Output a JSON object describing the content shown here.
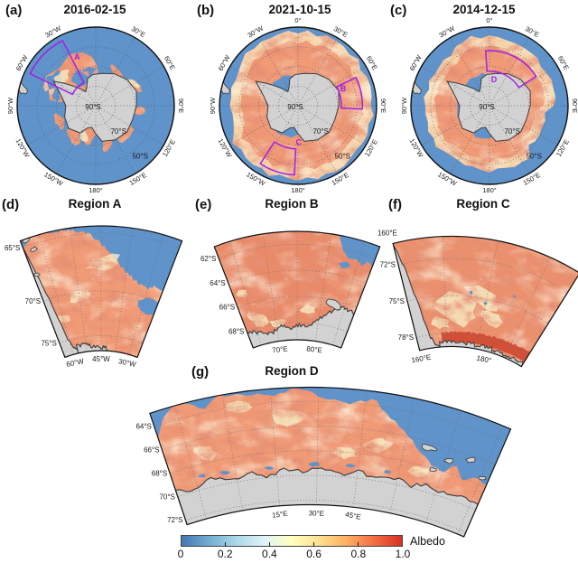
{
  "panels": {
    "a": {
      "tag": "(a)",
      "title": "2016-02-15",
      "ring_labels": [
        "30°E",
        "60°E",
        "90°E",
        "120°E",
        "150°E",
        "180°",
        "150°W",
        "120°W",
        "90°W",
        "60°W",
        "30°W"
      ],
      "interior_labels": [
        "90°S",
        "70°S",
        "50°S"
      ],
      "box_labels": [
        "A"
      ]
    },
    "b": {
      "tag": "(b)",
      "title": "2021-10-15",
      "ring_labels": [
        "0°",
        "30°E",
        "60°E",
        "90°E",
        "120°E",
        "150°E",
        "180°",
        "150°W",
        "120°W",
        "90°W",
        "60°W",
        "30°W"
      ],
      "interior_labels": [
        "90°S",
        "70°S",
        "50°S"
      ],
      "box_labels": [
        "B",
        "C"
      ]
    },
    "c": {
      "tag": "(c)",
      "title": "2014-12-15",
      "ring_labels": [
        "0°",
        "30°E",
        "60°E",
        "90°E",
        "120°E",
        "150°E",
        "180°",
        "150°W",
        "120°W",
        "90°W",
        "60°W",
        "30°W"
      ],
      "interior_labels": [
        "90°S",
        "70°S",
        "50°S"
      ],
      "box_labels": [
        "D"
      ]
    },
    "d": {
      "tag": "(d)",
      "title": "Region A",
      "lat_labels": [
        "65°S",
        "70°S",
        "75°S"
      ],
      "lon_labels": [
        "60°W",
        "45°W",
        "30°W"
      ]
    },
    "e": {
      "tag": "(e)",
      "title": "Region B",
      "lat_labels": [
        "62°S",
        "64°S",
        "66°S",
        "68°S"
      ],
      "lon_labels": [
        "70°E",
        "80°E"
      ]
    },
    "f": {
      "tag": "(f)",
      "title": "Region C",
      "lat_labels": [
        "72°S",
        "75°S",
        "78°S"
      ],
      "lon_labels": [
        "160°E",
        "180°"
      ],
      "edge_label": "160°E"
    },
    "g": {
      "tag": "(g)",
      "title": "Region D",
      "lat_labels": [
        "64°S",
        "66°S",
        "68°S",
        "70°S",
        "72°S"
      ],
      "lon_labels": [
        "15°E",
        "30°E",
        "45°E"
      ]
    }
  },
  "colorbar": {
    "ticks": [
      "0",
      "0.2",
      "0.4",
      "0.6",
      "0.8",
      "1.0"
    ],
    "label": "Albedo"
  },
  "colors": {
    "ocean": "#5f93c9",
    "land": "#d2d2d2",
    "coast": "#3c3c3c",
    "ice_base": "#f09a76",
    "ice_red": "#ce4a31",
    "ice_pale": "#f6ecc3",
    "region_box": "#a21fe8",
    "colormap": [
      "#4575b4",
      "#74add1",
      "#abd9e9",
      "#e0f3f8",
      "#ffffbf",
      "#fee090",
      "#fdae61",
      "#f46d43",
      "#d73027"
    ]
  }
}
